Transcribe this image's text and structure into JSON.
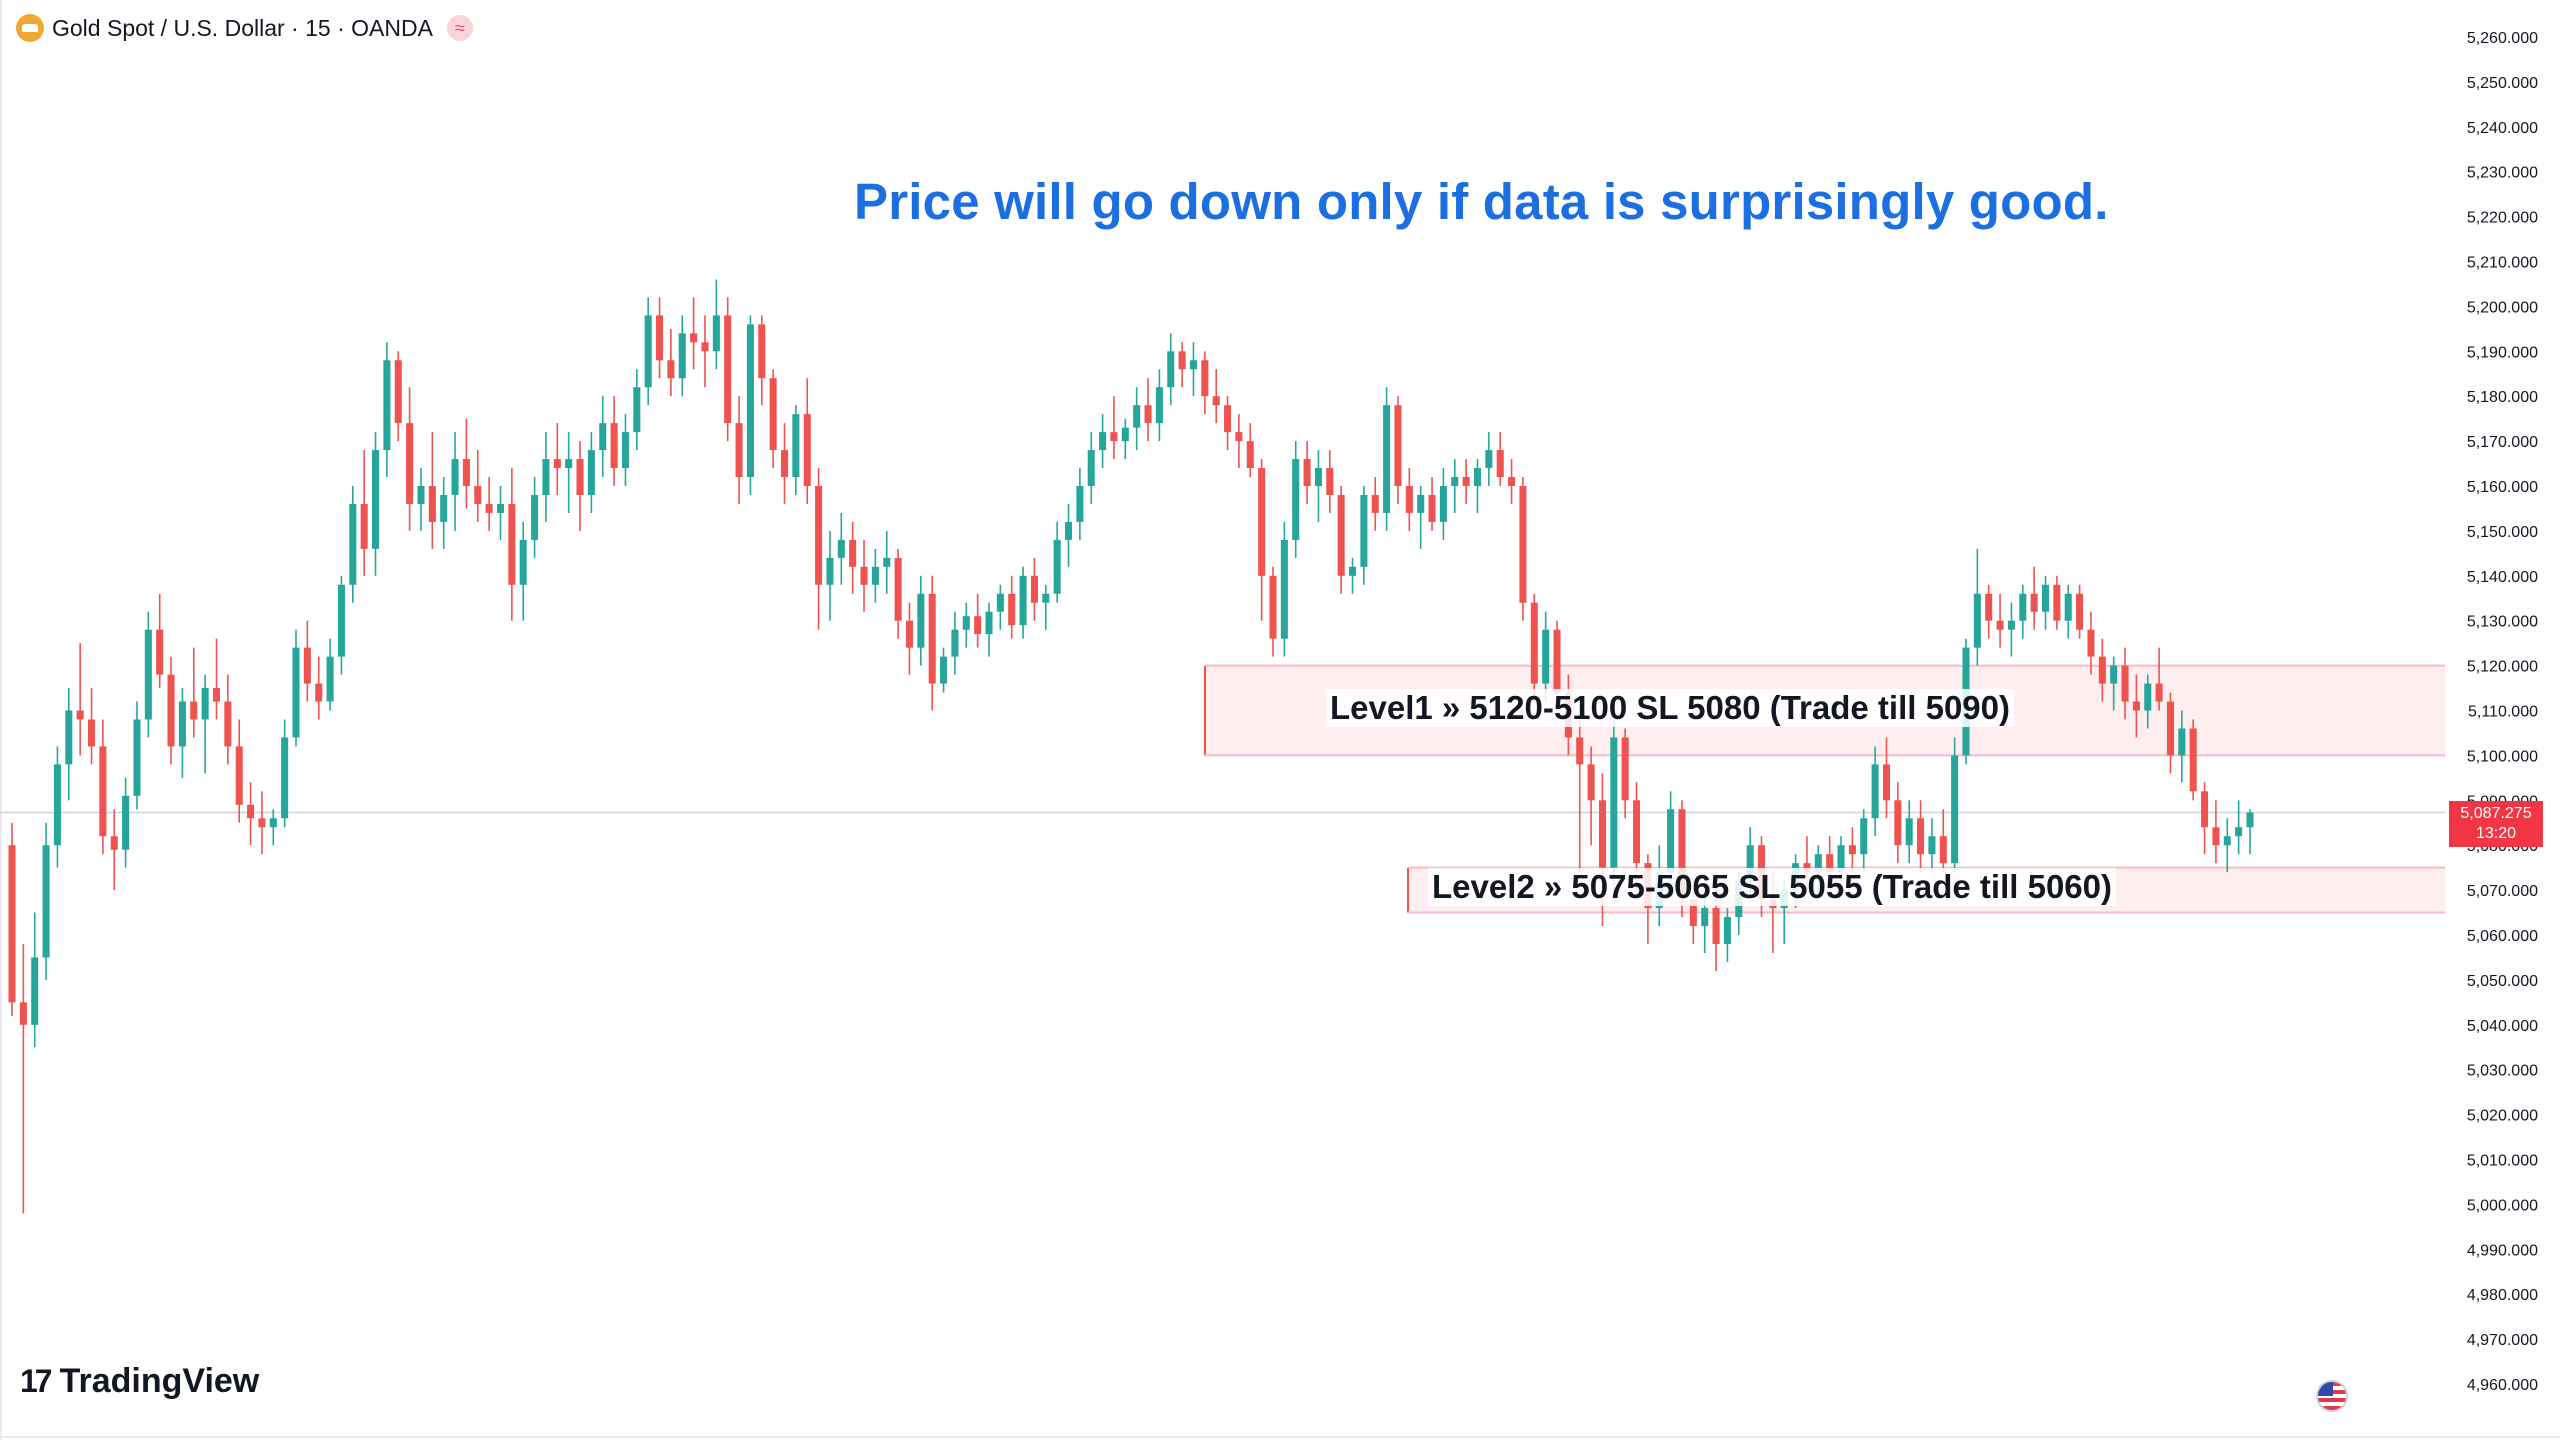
{
  "header": {
    "symbol_title": "Gold Spot / U.S. Dollar · 15 · OANDA",
    "symbol_icon": "gold-bar-icon",
    "indicator_icon": "wave-icon"
  },
  "headline": "Price will go down only if data is surprisingly good.",
  "price_tag": {
    "price": "5,087.275",
    "countdown": "13:20"
  },
  "branding": {
    "logo_text": "TradingView",
    "logo_mark": "17"
  },
  "zones": [
    {
      "label": "Level1 » 5120-5100 SL 5080 (Trade till 5090)",
      "top": 5120,
      "bottom": 5100
    },
    {
      "label": "Level2 » 5075-5065 SL 5055 (Trade till 5060)",
      "top": 5075,
      "bottom": 5065
    }
  ],
  "colors": {
    "up": "#26a69a",
    "down": "#ef5350",
    "headline": "#1c6fe0",
    "zone_border": "#ef5350",
    "zone_fill": "#fde8ea"
  },
  "chart_data": {
    "type": "candlestick",
    "ylim": [
      4955,
      5265
    ],
    "y_ticks": [
      "5,260.000",
      "5,250.000",
      "5,240.000",
      "5,230.000",
      "5,220.000",
      "5,210.000",
      "5,200.000",
      "5,190.000",
      "5,180.000",
      "5,170.000",
      "5,160.000",
      "5,150.000",
      "5,140.000",
      "5,130.000",
      "5,120.000",
      "5,110.000",
      "5,100.000",
      "5,090.000",
      "5,080.000",
      "5,070.000",
      "5,060.000",
      "5,050.000",
      "5,040.000",
      "5,030.000",
      "5,020.000",
      "5,010.000",
      "5,000.000",
      "4,990.000",
      "4,980.000",
      "4,970.000",
      "4,960.000"
    ],
    "last_price": 5087.275,
    "ohlc": [
      [
        5080,
        5085,
        5042,
        5045
      ],
      [
        5045,
        5058,
        4998,
        5040
      ],
      [
        5040,
        5065,
        5035,
        5055
      ],
      [
        5055,
        5085,
        5050,
        5080
      ],
      [
        5080,
        5102,
        5075,
        5098
      ],
      [
        5098,
        5115,
        5090,
        5110
      ],
      [
        5110,
        5125,
        5100,
        5108
      ],
      [
        5108,
        5115,
        5098,
        5102
      ],
      [
        5102,
        5108,
        5078,
        5082
      ],
      [
        5082,
        5088,
        5070,
        5079
      ],
      [
        5079,
        5095,
        5075,
        5091
      ],
      [
        5091,
        5112,
        5088,
        5108
      ],
      [
        5108,
        5132,
        5104,
        5128
      ],
      [
        5128,
        5136,
        5115,
        5118
      ],
      [
        5118,
        5122,
        5098,
        5102
      ],
      [
        5102,
        5115,
        5095,
        5112
      ],
      [
        5112,
        5124,
        5104,
        5108
      ],
      [
        5108,
        5118,
        5096,
        5115
      ],
      [
        5115,
        5126,
        5108,
        5112
      ],
      [
        5112,
        5118,
        5098,
        5102
      ],
      [
        5102,
        5108,
        5085,
        5089
      ],
      [
        5089,
        5094,
        5080,
        5086
      ],
      [
        5086,
        5092,
        5078,
        5084
      ],
      [
        5084,
        5088,
        5080,
        5086
      ],
      [
        5086,
        5108,
        5084,
        5104
      ],
      [
        5104,
        5128,
        5102,
        5124
      ],
      [
        5124,
        5130,
        5112,
        5116
      ],
      [
        5116,
        5122,
        5108,
        5112
      ],
      [
        5112,
        5126,
        5110,
        5122
      ],
      [
        5122,
        5140,
        5118,
        5138
      ],
      [
        5138,
        5160,
        5134,
        5156
      ],
      [
        5156,
        5168,
        5140,
        5146
      ],
      [
        5146,
        5172,
        5140,
        5168
      ],
      [
        5168,
        5192,
        5162,
        5188
      ],
      [
        5188,
        5190,
        5170,
        5174
      ],
      [
        5174,
        5182,
        5150,
        5156
      ],
      [
        5156,
        5164,
        5150,
        5160
      ],
      [
        5160,
        5172,
        5146,
        5152
      ],
      [
        5152,
        5162,
        5146,
        5158
      ],
      [
        5158,
        5172,
        5150,
        5166
      ],
      [
        5166,
        5175,
        5155,
        5160
      ],
      [
        5160,
        5168,
        5152,
        5156
      ],
      [
        5156,
        5162,
        5150,
        5154
      ],
      [
        5154,
        5160,
        5148,
        5156
      ],
      [
        5156,
        5164,
        5130,
        5138
      ],
      [
        5138,
        5152,
        5130,
        5148
      ],
      [
        5148,
        5162,
        5144,
        5158
      ],
      [
        5158,
        5172,
        5152,
        5166
      ],
      [
        5166,
        5174,
        5158,
        5164
      ],
      [
        5164,
        5172,
        5154,
        5166
      ],
      [
        5166,
        5170,
        5150,
        5158
      ],
      [
        5158,
        5172,
        5154,
        5168
      ],
      [
        5168,
        5180,
        5162,
        5174
      ],
      [
        5174,
        5180,
        5160,
        5164
      ],
      [
        5164,
        5176,
        5160,
        5172
      ],
      [
        5172,
        5186,
        5168,
        5182
      ],
      [
        5182,
        5202,
        5178,
        5198
      ],
      [
        5198,
        5202,
        5184,
        5188
      ],
      [
        5188,
        5195,
        5180,
        5184
      ],
      [
        5184,
        5198,
        5180,
        5194
      ],
      [
        5194,
        5202,
        5186,
        5192
      ],
      [
        5192,
        5198,
        5182,
        5190
      ],
      [
        5190,
        5206,
        5186,
        5198
      ],
      [
        5198,
        5202,
        5170,
        5174
      ],
      [
        5174,
        5180,
        5156,
        5162
      ],
      [
        5162,
        5198,
        5158,
        5196
      ],
      [
        5196,
        5198,
        5178,
        5184
      ],
      [
        5184,
        5186,
        5164,
        5168
      ],
      [
        5168,
        5174,
        5156,
        5162
      ],
      [
        5162,
        5178,
        5158,
        5176
      ],
      [
        5176,
        5184,
        5156,
        5160
      ],
      [
        5160,
        5164,
        5128,
        5138
      ],
      [
        5138,
        5150,
        5130,
        5144
      ],
      [
        5144,
        5154,
        5138,
        5148
      ],
      [
        5148,
        5152,
        5136,
        5142
      ],
      [
        5142,
        5148,
        5132,
        5138
      ],
      [
        5138,
        5146,
        5134,
        5142
      ],
      [
        5142,
        5150,
        5136,
        5144
      ],
      [
        5144,
        5146,
        5126,
        5130
      ],
      [
        5130,
        5134,
        5118,
        5124
      ],
      [
        5124,
        5140,
        5120,
        5136
      ],
      [
        5136,
        5140,
        5110,
        5116
      ],
      [
        5116,
        5124,
        5114,
        5122
      ],
      [
        5122,
        5132,
        5118,
        5128
      ],
      [
        5128,
        5134,
        5124,
        5131
      ],
      [
        5131,
        5136,
        5124,
        5127
      ],
      [
        5127,
        5134,
        5122,
        5132
      ],
      [
        5132,
        5138,
        5128,
        5136
      ],
      [
        5136,
        5140,
        5126,
        5129
      ],
      [
        5129,
        5142,
        5126,
        5140
      ],
      [
        5140,
        5144,
        5130,
        5134
      ],
      [
        5134,
        5138,
        5128,
        5136
      ],
      [
        5136,
        5152,
        5134,
        5148
      ],
      [
        5148,
        5156,
        5142,
        5152
      ],
      [
        5152,
        5164,
        5148,
        5160
      ],
      [
        5160,
        5172,
        5156,
        5168
      ],
      [
        5168,
        5176,
        5164,
        5172
      ],
      [
        5172,
        5180,
        5166,
        5170
      ],
      [
        5170,
        5175,
        5166,
        5173
      ],
      [
        5173,
        5182,
        5168,
        5178
      ],
      [
        5178,
        5184,
        5170,
        5174
      ],
      [
        5174,
        5186,
        5170,
        5182
      ],
      [
        5182,
        5194,
        5178,
        5190
      ],
      [
        5190,
        5192,
        5182,
        5186
      ],
      [
        5186,
        5192,
        5180,
        5188
      ],
      [
        5188,
        5190,
        5176,
        5180
      ],
      [
        5180,
        5186,
        5174,
        5178
      ],
      [
        5178,
        5180,
        5168,
        5172
      ],
      [
        5172,
        5176,
        5164,
        5170
      ],
      [
        5170,
        5174,
        5162,
        5164
      ],
      [
        5164,
        5166,
        5130,
        5140
      ],
      [
        5140,
        5142,
        5122,
        5126
      ],
      [
        5126,
        5152,
        5122,
        5148
      ],
      [
        5148,
        5170,
        5144,
        5166
      ],
      [
        5166,
        5170,
        5156,
        5160
      ],
      [
        5160,
        5168,
        5152,
        5164
      ],
      [
        5164,
        5168,
        5154,
        5158
      ],
      [
        5158,
        5160,
        5136,
        5140
      ],
      [
        5140,
        5144,
        5136,
        5142
      ],
      [
        5142,
        5160,
        5138,
        5158
      ],
      [
        5158,
        5162,
        5150,
        5154
      ],
      [
        5154,
        5182,
        5150,
        5178
      ],
      [
        5178,
        5180,
        5156,
        5160
      ],
      [
        5160,
        5164,
        5150,
        5154
      ],
      [
        5154,
        5160,
        5146,
        5158
      ],
      [
        5158,
        5162,
        5150,
        5152
      ],
      [
        5152,
        5164,
        5148,
        5160
      ],
      [
        5160,
        5166,
        5154,
        5162
      ],
      [
        5162,
        5166,
        5156,
        5160
      ],
      [
        5160,
        5166,
        5154,
        5164
      ],
      [
        5164,
        5172,
        5160,
        5168
      ],
      [
        5168,
        5172,
        5160,
        5162
      ],
      [
        5162,
        5166,
        5156,
        5160
      ],
      [
        5160,
        5162,
        5130,
        5134
      ],
      [
        5134,
        5136,
        5112,
        5116
      ],
      [
        5116,
        5132,
        5112,
        5128
      ],
      [
        5128,
        5130,
        5110,
        5114
      ],
      [
        5114,
        5118,
        5100,
        5104
      ],
      [
        5104,
        5108,
        5074,
        5098
      ],
      [
        5098,
        5102,
        5080,
        5090
      ],
      [
        5090,
        5096,
        5062,
        5075
      ],
      [
        5075,
        5108,
        5068,
        5104
      ],
      [
        5104,
        5106,
        5086,
        5090
      ],
      [
        5090,
        5094,
        5070,
        5076
      ],
      [
        5076,
        5078,
        5058,
        5066
      ],
      [
        5066,
        5080,
        5062,
        5074
      ],
      [
        5074,
        5092,
        5070,
        5088
      ],
      [
        5088,
        5090,
        5064,
        5068
      ],
      [
        5068,
        5072,
        5058,
        5062
      ],
      [
        5062,
        5070,
        5056,
        5066
      ],
      [
        5066,
        5074,
        5052,
        5058
      ],
      [
        5058,
        5066,
        5054,
        5064
      ],
      [
        5064,
        5074,
        5060,
        5072
      ],
      [
        5072,
        5084,
        5068,
        5080
      ],
      [
        5080,
        5082,
        5064,
        5068
      ],
      [
        5068,
        5074,
        5056,
        5066
      ],
      [
        5066,
        5072,
        5058,
        5070
      ],
      [
        5070,
        5078,
        5066,
        5076
      ],
      [
        5076,
        5082,
        5070,
        5074
      ],
      [
        5074,
        5080,
        5068,
        5078
      ],
      [
        5078,
        5082,
        5070,
        5074
      ],
      [
        5074,
        5082,
        5072,
        5080
      ],
      [
        5080,
        5084,
        5074,
        5078
      ],
      [
        5078,
        5088,
        5074,
        5086
      ],
      [
        5086,
        5102,
        5082,
        5098
      ],
      [
        5098,
        5104,
        5086,
        5090
      ],
      [
        5090,
        5094,
        5076,
        5080
      ],
      [
        5080,
        5090,
        5076,
        5086
      ],
      [
        5086,
        5090,
        5074,
        5078
      ],
      [
        5078,
        5086,
        5074,
        5082
      ],
      [
        5082,
        5088,
        5074,
        5076
      ],
      [
        5076,
        5104,
        5074,
        5100
      ],
      [
        5100,
        5126,
        5098,
        5124
      ],
      [
        5124,
        5146,
        5120,
        5136
      ],
      [
        5136,
        5138,
        5126,
        5130
      ],
      [
        5130,
        5136,
        5124,
        5128
      ],
      [
        5128,
        5134,
        5122,
        5130
      ],
      [
        5130,
        5138,
        5126,
        5136
      ],
      [
        5136,
        5142,
        5128,
        5132
      ],
      [
        5132,
        5140,
        5128,
        5138
      ],
      [
        5138,
        5140,
        5128,
        5130
      ],
      [
        5130,
        5138,
        5126,
        5136
      ],
      [
        5136,
        5138,
        5126,
        5128
      ],
      [
        5128,
        5132,
        5118,
        5122
      ],
      [
        5122,
        5126,
        5112,
        5116
      ],
      [
        5116,
        5122,
        5110,
        5120
      ],
      [
        5120,
        5124,
        5108,
        5112
      ],
      [
        5112,
        5118,
        5104,
        5110
      ],
      [
        5110,
        5118,
        5106,
        5116
      ],
      [
        5116,
        5124,
        5110,
        5112
      ],
      [
        5112,
        5114,
        5096,
        5100
      ],
      [
        5100,
        5110,
        5094,
        5106
      ],
      [
        5106,
        5108,
        5090,
        5092
      ],
      [
        5092,
        5094,
        5078,
        5084
      ],
      [
        5084,
        5090,
        5076,
        5080
      ],
      [
        5080,
        5086,
        5074,
        5082
      ],
      [
        5082,
        5090,
        5078,
        5084
      ],
      [
        5084,
        5088,
        5078,
        5087.275
      ]
    ]
  }
}
